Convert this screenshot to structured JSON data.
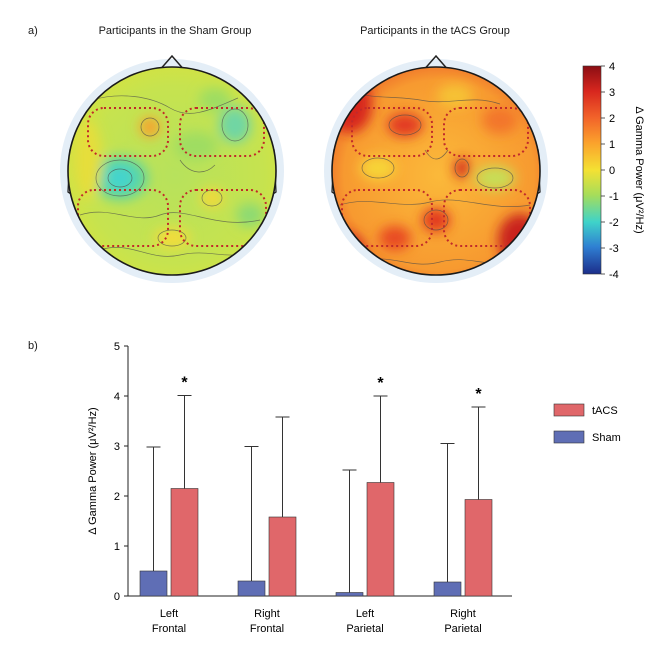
{
  "panel_labels": {
    "a": "a)",
    "b": "b)"
  },
  "topo": {
    "sham_title": "Participants in the Sham Group",
    "tacs_title": "Participants in the tACS Group",
    "colorbar": {
      "label": "Δ Gamma Power (μV²/Hz)",
      "ticks": [
        "4",
        "3",
        "2",
        "1",
        "0",
        "-1",
        "-2",
        "-3",
        "-4"
      ],
      "colors": [
        "#8b0e14",
        "#d7261e",
        "#f2642a",
        "#fba22c",
        "#f4e133",
        "#a6dd5a",
        "#3fd3c9",
        "#2f7fd2",
        "#1c2d8a"
      ]
    }
  },
  "chart_data": {
    "type": "bar",
    "ylabel": "Δ Gamma Power (μV²/Hz)",
    "ylim": [
      0,
      5
    ],
    "yticks": [
      "0",
      "1",
      "2",
      "3",
      "4",
      "5"
    ],
    "categories": [
      {
        "line1": "Left",
        "line2": "Frontal"
      },
      {
        "line1": "Right",
        "line2": "Frontal"
      },
      {
        "line1": "Left",
        "line2": "Parietal"
      },
      {
        "line1": "Right",
        "line2": "Parietal"
      }
    ],
    "series": [
      {
        "name": "Sham",
        "color": "#5f6eb5",
        "values": [
          0.5,
          0.3,
          0.07,
          0.28
        ],
        "err_upper": [
          2.98,
          2.99,
          2.52,
          3.05
        ]
      },
      {
        "name": "tACS",
        "color": "#e0676a",
        "values": [
          2.15,
          1.58,
          2.27,
          1.93
        ],
        "err_upper": [
          4.01,
          3.58,
          4.0,
          3.78
        ]
      }
    ],
    "significance": [
      "*",
      "",
      "*",
      "*"
    ],
    "legend": [
      "tACS",
      "Sham"
    ]
  }
}
